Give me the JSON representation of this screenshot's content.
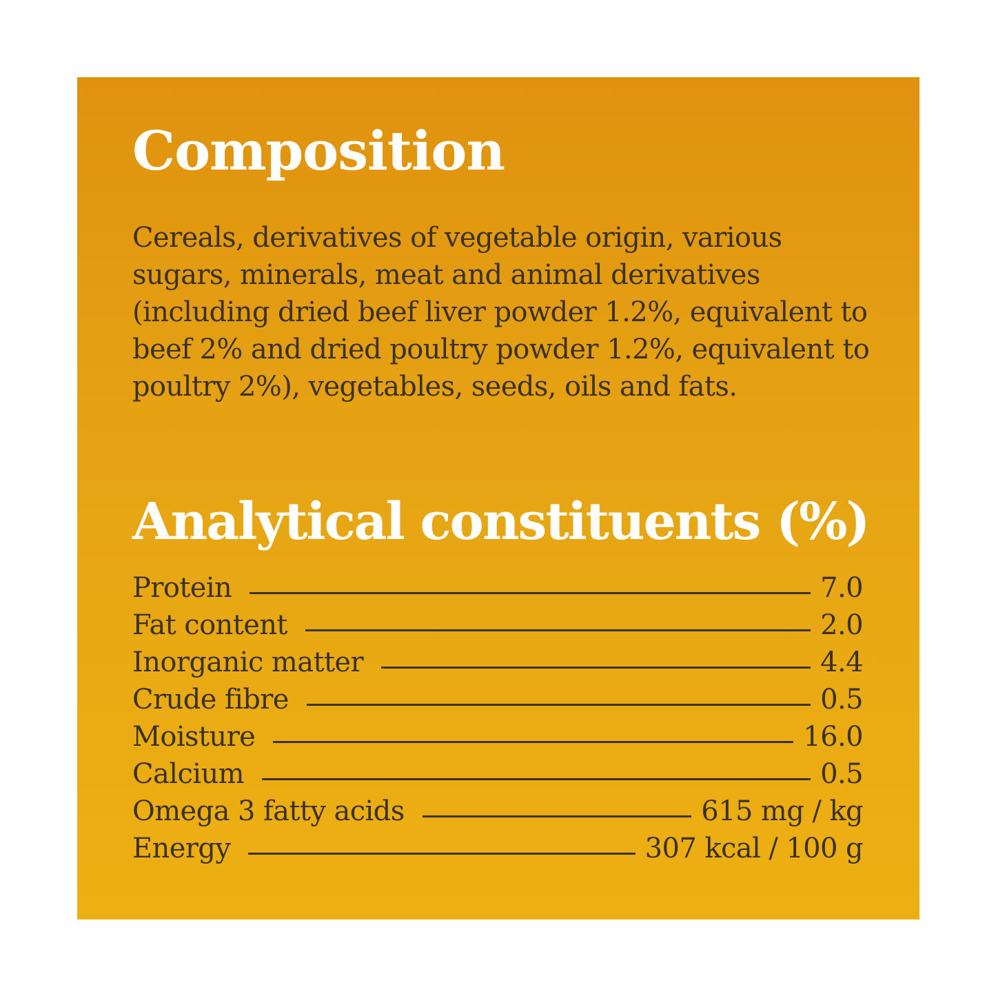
{
  "composition": {
    "title": "Composition",
    "text": "Cereals, derivatives of vegetable origin, various sugars, minerals, meat and animal derivatives (including dried beef liver powder 1.2%, equivalent to beef 2% and dried poultry powder 1.2%, equivalent to poultry 2%), vegetables, seeds, oils and fats."
  },
  "analytical": {
    "title": "Analytical constituents (%)",
    "rows": [
      {
        "label": "Protein",
        "value": "7.0"
      },
      {
        "label": "Fat content",
        "value": "2.0"
      },
      {
        "label": "Inorganic matter",
        "value": "4.4"
      },
      {
        "label": "Crude fibre",
        "value": "0.5"
      },
      {
        "label": "Moisture",
        "value": "16.0"
      },
      {
        "label": "Calcium",
        "value": "0.5"
      },
      {
        "label": "Omega 3 fatty acids",
        "value": "615 mg / kg"
      },
      {
        "label": "Energy",
        "value": "307 kcal / 100 g"
      }
    ]
  },
  "colors": {
    "panel_top": "#e0920e",
    "panel_bottom": "#edb012",
    "heading": "#ffffff",
    "body_text": "#3b3226"
  }
}
